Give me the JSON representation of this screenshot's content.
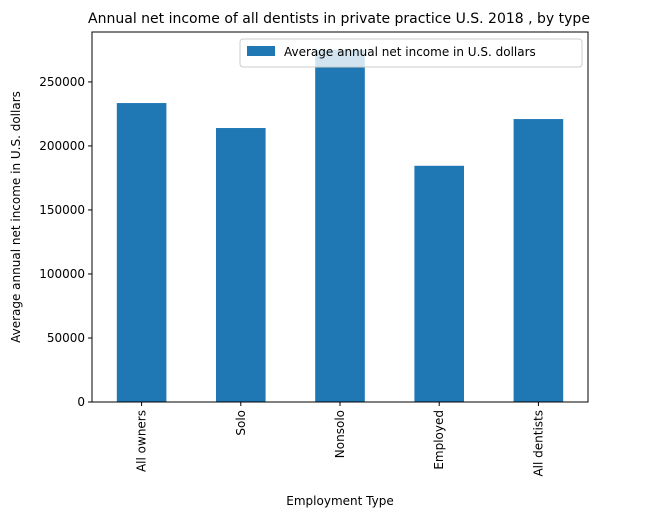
{
  "chart_data": {
    "type": "bar",
    "title": "Annual net income of all dentists in private practice U.S. 2018 , by type",
    "xlabel": "Employment Type",
    "ylabel": "Average annual net income in U.S. dollars",
    "categories": [
      "All owners",
      "Solo",
      "Nonsolo",
      "Employed",
      "All dentists"
    ],
    "series": [
      {
        "name": "Average annual net income in U.S. dollars",
        "values": [
          233500,
          214000,
          275000,
          184500,
          221000
        ],
        "color": "#1f77b4"
      }
    ],
    "ylim": [
      0,
      289000
    ],
    "yticks": [
      0,
      50000,
      100000,
      150000,
      200000,
      250000
    ],
    "grid": false,
    "legend_position": "top-right"
  }
}
